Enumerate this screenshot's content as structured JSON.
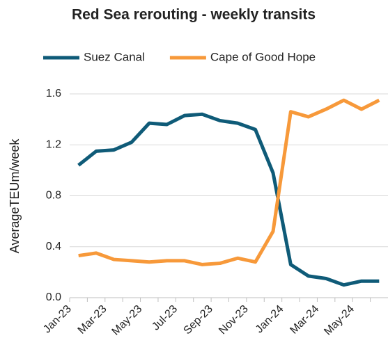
{
  "chart_data": {
    "type": "line",
    "title": "Red Sea rerouting - weekly transits",
    "y_label": "AverageTEUm/week",
    "categories": [
      "Jan-23",
      null,
      "Mar-23",
      null,
      "May-23",
      null,
      "Jul-23",
      null,
      "Sep-23",
      null,
      "Nov-23",
      null,
      "Jan-24",
      null,
      "Mar-24",
      null,
      "May-24",
      null
    ],
    "series": [
      {
        "name": "Suez Canal",
        "color": "#0f5b78",
        "values": [
          1.04,
          1.15,
          1.16,
          1.22,
          1.37,
          1.36,
          1.43,
          1.44,
          1.39,
          1.37,
          1.32,
          0.98,
          0.26,
          0.17,
          0.15,
          0.1,
          0.13,
          0.13
        ]
      },
      {
        "name": "Cape of Good Hope",
        "color": "#f7993a",
        "values": [
          0.33,
          0.35,
          0.3,
          0.29,
          0.28,
          0.29,
          0.29,
          0.26,
          0.27,
          0.31,
          0.28,
          0.52,
          1.46,
          1.42,
          1.48,
          1.55,
          1.48,
          1.55
        ]
      }
    ],
    "ylim": [
      0,
      1.6
    ],
    "yticks": [
      {
        "value": 0,
        "label": "0.0"
      },
      0.4,
      0.8,
      1.2,
      1.6
    ],
    "grid": true,
    "legend": "top"
  }
}
